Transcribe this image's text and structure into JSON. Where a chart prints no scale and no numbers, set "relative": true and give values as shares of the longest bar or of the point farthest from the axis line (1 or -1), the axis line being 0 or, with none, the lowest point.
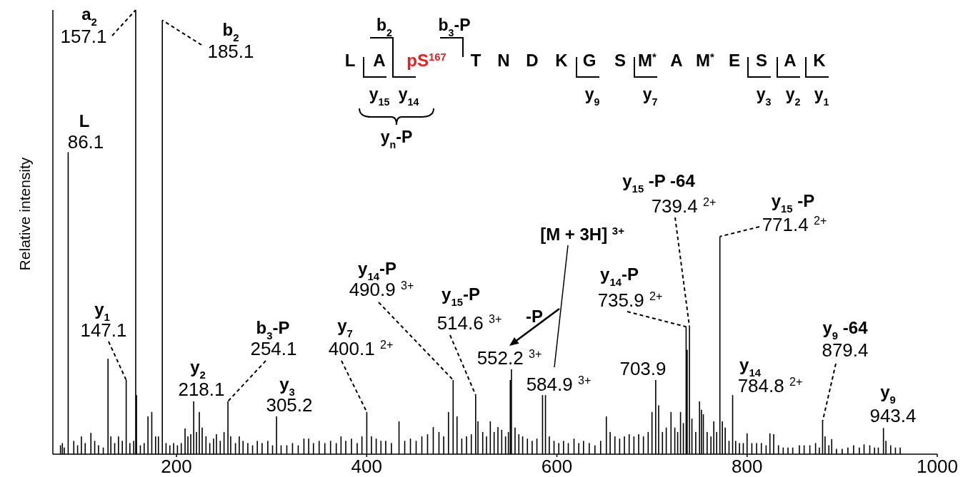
{
  "chart_data": {
    "type": "bar",
    "ylabel": "Relative intensity",
    "relative": true,
    "color": "#000000",
    "xlim": [
      70,
      1000
    ],
    "xticks": [
      200,
      400,
      600,
      800,
      1000
    ],
    "x": [
      78,
      80,
      82,
      86.1,
      92,
      96,
      100,
      104,
      110,
      114,
      118,
      123,
      128,
      131,
      135,
      139,
      143,
      147.1,
      151,
      155,
      157.1,
      158,
      162,
      166,
      170,
      174,
      178,
      181,
      185.1,
      189,
      193,
      197,
      201,
      205,
      209,
      212,
      215,
      218.1,
      221,
      224,
      227,
      231,
      235,
      239,
      242,
      246,
      250,
      254.1,
      257,
      262,
      266,
      270,
      275,
      280,
      285,
      290,
      296,
      301,
      305.2,
      310,
      316,
      322,
      328,
      334,
      339,
      344,
      350,
      356,
      362,
      368,
      373,
      378,
      384,
      390,
      395,
      400.1,
      405,
      410,
      415,
      420,
      426,
      434,
      440,
      446,
      452,
      458,
      464,
      470,
      476,
      481,
      486,
      490.9,
      495,
      500,
      505,
      510,
      514.6,
      517,
      522,
      526,
      530,
      534,
      538,
      542,
      546,
      549,
      551,
      552.2,
      556,
      560,
      564,
      569,
      574,
      579,
      584.9,
      588,
      592,
      597,
      602,
      607,
      612,
      618,
      623,
      628,
      634,
      640,
      646,
      652,
      656,
      661,
      666,
      671,
      676,
      681,
      686,
      691,
      696,
      700,
      703.9,
      707,
      711,
      715,
      720,
      724,
      727,
      730,
      733,
      735.9,
      737,
      739.4,
      742,
      746,
      750,
      752,
      754,
      758,
      762,
      765,
      768,
      771.4,
      774,
      777,
      781,
      784.8,
      788,
      792,
      796,
      800,
      805,
      810,
      815,
      820,
      824,
      828,
      833,
      838,
      843,
      848,
      855,
      860,
      866,
      872,
      876,
      879.4,
      882,
      886,
      889,
      894,
      900,
      906,
      912,
      918,
      923,
      929,
      934,
      938,
      943.4,
      946,
      951,
      956,
      961
    ],
    "values": [
      0.02,
      0.025,
      0.015,
      0.68,
      0.03,
      0.02,
      0.04,
      0.025,
      0.048,
      0.03,
      0.02,
      0.015,
      0.215,
      0.04,
      0.025,
      0.04,
      0.03,
      0.167,
      0.025,
      0.03,
      1,
      0.133,
      0.02,
      0.025,
      0.085,
      0.095,
      0.04,
      0.04,
      0.977,
      0.025,
      0.02,
      0.025,
      0.02,
      0.025,
      0.058,
      0.04,
      0.045,
      0.119,
      0.05,
      0.095,
      0.06,
      0.04,
      0.025,
      0.035,
      0.045,
      0.03,
      0.05,
      0.119,
      0.04,
      0.025,
      0.04,
      0.03,
      0.025,
      0.02,
      0.03,
      0.025,
      0.03,
      0.02,
      0.085,
      0.02,
      0.02,
      0.025,
      0.02,
      0.035,
      0.035,
      0.025,
      0.03,
      0.025,
      0.03,
      0.025,
      0.04,
      0.03,
      0.035,
      0.025,
      0.04,
      0.095,
      0.04,
      0.035,
      0.03,
      0.03,
      0.025,
      0.074,
      0.03,
      0.035,
      0.03,
      0.04,
      0.045,
      0.061,
      0.05,
      0.04,
      0.095,
      0.167,
      0.085,
      0.035,
      0.04,
      0.045,
      0.133,
      0.074,
      0.05,
      0.04,
      0.074,
      0.05,
      0.061,
      0.055,
      0.04,
      0.05,
      0.167,
      0.191,
      0.06,
      0.045,
      0.04,
      0.035,
      0.03,
      0.035,
      0.133,
      0.133,
      0.04,
      0.03,
      0.025,
      0.03,
      0.025,
      0.035,
      0.025,
      0.03,
      0.025,
      0.02,
      0.03,
      0.085,
      0.05,
      0.04,
      0.035,
      0.04,
      0.045,
      0.04,
      0.045,
      0.04,
      0.05,
      0.095,
      0.167,
      0.11,
      0.05,
      0.06,
      0.095,
      0.06,
      0.05,
      0.095,
      0.07,
      0.287,
      0.235,
      0.287,
      0.08,
      0.05,
      0.119,
      0.1,
      0.09,
      0.05,
      0.04,
      0.074,
      0.05,
      0.49,
      0.074,
      0.06,
      0.03,
      0.133,
      0.03,
      0.025,
      0.025,
      0.047,
      0.025,
      0.025,
      0.025,
      0.02,
      0.047,
      0.045,
      0.02,
      0.015,
      0.015,
      0.015,
      0.02,
      0.02,
      0.02,
      0.025,
      0.015,
      0.074,
      0.04,
      0.02,
      0.034,
      0.012,
      0.012,
      0.015,
      0.02,
      0.015,
      0.022,
      0.02,
      0.015,
      0.015,
      0.059,
      0.03,
      0.02,
      0.015,
      0.015
    ],
    "annotations": [
      "L A pS$^{167}$ T N D K G S M$^{*}$ A M$^{*}$ E S A K",
      "b$_{2}$",
      "b$_{3}$-P",
      "y$_{15}$",
      "y$_{14}$",
      "y$_{9}$",
      "y$_{7}$",
      "y$_{3}$",
      "y$_{2}$",
      "y$_{1}$",
      "y$_{n}$-P",
      {
        "text": "L\n86.1",
        "x": 86.1,
        "y": 0.68
      },
      {
        "text": "a$_{2}$\n157.1",
        "x": 157.1,
        "y": 1
      },
      {
        "text": "b$_{2}$\n185.1",
        "x": 185.1,
        "y": 0.977
      },
      {
        "text": "y$_{1}$\n147.1",
        "x": 147.1,
        "y": 0.167
      },
      {
        "text": "y$_{2}$\n218.1",
        "x": 218.1,
        "y": 0.119
      },
      {
        "text": "b$_{3}$-P\n254.1",
        "x": 254.1,
        "y": 0.119
      },
      {
        "text": "y$_{3}$\n305.2",
        "x": 305.2,
        "y": 0.085
      },
      {
        "text": "y$_{7}$\n400.1 $^{2+}$",
        "x": 400.1,
        "y": 0.095
      },
      {
        "text": "y$_{14}$-P\n490.9 $^{3+}$",
        "x": 490.9,
        "y": 0.167
      },
      {
        "text": "y$_{15}$-P\n514.6 $^{3+}$",
        "x": 514.6,
        "y": 0.133
      },
      {
        "text": "552.2 $^{3+}$",
        "x": 552.2,
        "y": 0.191
      },
      {
        "text": "584.9 $^{3+}$",
        "x": 584.9,
        "y": 0.133
      },
      "[M + 3H] $^{3+}$",
      {
        "text": "703.9",
        "x": 703.9,
        "y": 0.167
      },
      {
        "text": "y$_{14}$-P\n735.9 $^{2+}$",
        "x": 735.9,
        "y": 0.287
      },
      {
        "text": "y$_{15}$ -P -64\n739.4 $^{2+}$",
        "x": 739.4,
        "y": 0.287
      },
      {
        "text": "y$_{15}$ -P\n771.4 $^{2+}$",
        "x": 771.4,
        "y": 0.49
      },
      {
        "text": "y$_{14}$\n784.8 $^{2+}$",
        "x": 784.8,
        "y": 0.133
      },
      {
        "text": "y$_{9}$ -64\n879.4",
        "x": 879.4,
        "y": 0.074
      },
      {
        "text": "y$_{9}$\n943.4",
        "x": 943.4,
        "y": 0.059
      },
      "-P"
    ]
  }
}
